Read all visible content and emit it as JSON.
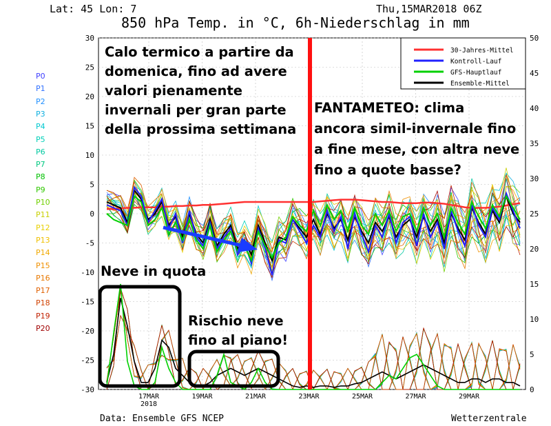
{
  "header": {
    "location": "Lat: 45 Lon: 7",
    "datetime": "Thu,15MAR2018 06Z",
    "title": "850 hPa Temp. in °C, 6h-Niederschlag in mm"
  },
  "footer": {
    "source": "Data: Ensemble GFS NCEP",
    "brand": "Wetterzentrale"
  },
  "annotations": {
    "left_text": [
      "Calo termico a partire da",
      "domenica, fino ad avere",
      "valori pienamente",
      "invernali per gran parte",
      "della prossima settimana"
    ],
    "right_text": [
      "FANTAMETEO: clima",
      "ancora simil-invernale fino",
      "a fine mese, con altra neve",
      "fino a quote basse?"
    ],
    "snow_high": "Neve in quota",
    "snow_plain": [
      "Rischio neve",
      "fino al piano!"
    ]
  },
  "members": [
    {
      "label": "P0",
      "color": "#4040ff"
    },
    {
      "label": "P1",
      "color": "#3070ff"
    },
    {
      "label": "P2",
      "color": "#2090ff"
    },
    {
      "label": "P3",
      "color": "#10b0e0"
    },
    {
      "label": "P4",
      "color": "#00c8d0"
    },
    {
      "label": "P5",
      "color": "#00d0b8"
    },
    {
      "label": "P6",
      "color": "#00c8a0"
    },
    {
      "label": "P7",
      "color": "#00c880"
    },
    {
      "label": "P8",
      "color": "#00c000"
    },
    {
      "label": "P9",
      "color": "#30c800"
    },
    {
      "label": "P10",
      "color": "#70d000"
    },
    {
      "label": "P11",
      "color": "#c8d000"
    },
    {
      "label": "P12",
      "color": "#e8d000"
    },
    {
      "label": "P13",
      "color": "#f0c000"
    },
    {
      "label": "P14",
      "color": "#f0a800"
    },
    {
      "label": "P15",
      "color": "#f09000"
    },
    {
      "label": "P16",
      "color": "#e87800"
    },
    {
      "label": "P17",
      "color": "#e06000"
    },
    {
      "label": "P18",
      "color": "#d04000"
    },
    {
      "label": "P19",
      "color": "#c02000"
    },
    {
      "label": "P20",
      "color": "#a00000"
    }
  ],
  "chart_data": {
    "type": "line",
    "x_tick_labels": [
      "17MAR",
      "19MAR",
      "21MAR",
      "23MAR",
      "25MAR",
      "27MAR",
      "29MAR"
    ],
    "x_year_label": "2018",
    "y_left_ticks": [
      30,
      25,
      20,
      15,
      10,
      5,
      0,
      -5,
      -10,
      -15,
      -20,
      -25,
      -30
    ],
    "y_right_ticks": [
      50,
      45,
      40,
      35,
      30,
      25,
      20,
      15,
      10,
      5,
      0
    ],
    "ylim_left": [
      -30,
      30
    ],
    "ylim_right": [
      0,
      50
    ],
    "legend": [
      {
        "name": "30-Jahres-Mittel",
        "color": "#ff3030"
      },
      {
        "name": "Kontroll-Lauf",
        "color": "#2020ff"
      },
      {
        "name": "GFS-Hauptlauf",
        "color": "#00d000"
      },
      {
        "name": "Ensemble-Mittel",
        "color": "#000000"
      }
    ],
    "series": [
      {
        "name": "30-Jahres-Mittel",
        "color": "#ff3030",
        "values": [
          0.8,
          0.8,
          0.9,
          1.0,
          1.0,
          1.1,
          1.1,
          1.1,
          1.2,
          1.2,
          1.3,
          1.3,
          1.4,
          1.4,
          1.5,
          1.5,
          1.6,
          1.7,
          1.8,
          1.9,
          2.0,
          2.0,
          2.0,
          2.0,
          2.0,
          2.0,
          2.0,
          2.0,
          2.0,
          2.0,
          2.0,
          2.1,
          2.2,
          2.3,
          2.4,
          2.4,
          2.4,
          2.3,
          2.2,
          2.1,
          2.0,
          2.0,
          1.9,
          1.8,
          1.8,
          1.8,
          1.9,
          1.9,
          1.8,
          1.7,
          1.5,
          1.3,
          1.1,
          1.0,
          1.0,
          1.0,
          1.1,
          1.2,
          1.4,
          1.6,
          1.8
        ]
      },
      {
        "name": "Ensemble-Mittel",
        "color": "#000000",
        "values": [
          2.0,
          1.5,
          1.0,
          -1.5,
          4.0,
          2.5,
          -1.0,
          0.0,
          2.0,
          -2.0,
          -0.5,
          -4.0,
          0.0,
          -3.5,
          -5.0,
          -1.0,
          -5.5,
          -3.5,
          -2.0,
          -6.0,
          -4.5,
          -7.0,
          -2.0,
          -5.0,
          -8.0,
          -4.0,
          -4.5,
          -1.0,
          -2.5,
          -4.0,
          -1.0,
          -3.5,
          0.0,
          -2.5,
          -1.0,
          -4.5,
          -0.5,
          -3.0,
          -5.0,
          -1.5,
          -3.0,
          -0.5,
          -4.0,
          -2.0,
          -1.0,
          -4.0,
          -0.5,
          -3.0,
          -1.0,
          -5.0,
          0.0,
          -2.5,
          -4.5,
          1.0,
          -1.5,
          -3.5,
          0.5,
          -1.5,
          3.0,
          0.0,
          -1.5
        ]
      },
      {
        "name": "Kontroll-Lauf",
        "color": "#2020ff",
        "values": [
          1.5,
          1.0,
          0.5,
          -2.0,
          4.5,
          3.0,
          -1.5,
          0.5,
          2.5,
          -2.5,
          0.0,
          -5.0,
          0.5,
          -4.0,
          -5.5,
          -1.5,
          -6.0,
          -4.0,
          -2.5,
          -7.0,
          -5.0,
          -8.5,
          -2.5,
          -6.0,
          -10.5,
          -4.5,
          -5.0,
          -1.0,
          -3.0,
          -5.0,
          -2.0,
          -4.0,
          0.5,
          -3.0,
          -0.5,
          -6.0,
          0.0,
          -3.5,
          -6.5,
          -2.0,
          -4.0,
          0.0,
          -5.0,
          -1.5,
          -0.5,
          -5.5,
          0.0,
          -4.0,
          -1.5,
          -6.0,
          0.5,
          -3.0,
          -5.5,
          1.5,
          -2.0,
          -4.0,
          1.0,
          -1.0,
          3.5,
          0.5,
          -2.5
        ]
      },
      {
        "name": "GFS-Hauptlauf",
        "color": "#00d000",
        "values": [
          0.0,
          -1.0,
          -1.5,
          -2.0,
          3.0,
          2.0,
          -2.0,
          -1.0,
          1.0,
          -3.5,
          -1.5,
          -4.5,
          -1.0,
          -4.5,
          -6.0,
          -2.0,
          -6.5,
          -4.5,
          -3.0,
          -6.5,
          -5.5,
          -8.0,
          -3.0,
          -5.5,
          -7.5,
          -5.0,
          -4.0,
          -0.5,
          -2.0,
          -3.0,
          0.5,
          -2.0,
          1.5,
          -1.0,
          0.5,
          -3.0,
          1.0,
          -2.0,
          -3.5,
          0.0,
          -2.0,
          0.5,
          -3.0,
          -0.5,
          0.0,
          -3.0,
          1.0,
          -2.0,
          0.0,
          -4.0,
          1.0,
          -1.5,
          -3.5,
          2.0,
          -0.5,
          -2.5,
          1.5,
          -0.5,
          3.0,
          1.0,
          -1.0
        ]
      },
      {
        "name": "Ensemble-Mittel Niederschlag",
        "color": "#000000",
        "axis": "right",
        "values": [
          1.0,
          5.0,
          13.0,
          9.0,
          4.0,
          1.0,
          1.0,
          3.0,
          7.0,
          6.0,
          3.0,
          2.0,
          1.0,
          0.5,
          0.5,
          1.0,
          2.0,
          2.5,
          3.0,
          2.5,
          2.0,
          2.5,
          3.0,
          2.5,
          2.0,
          1.5,
          1.0,
          0.5,
          0.3,
          0.5,
          0.3,
          0.5,
          0.5,
          0.3,
          0.5,
          0.5,
          0.8,
          1.0,
          1.5,
          2.0,
          2.5,
          2.0,
          1.5,
          2.0,
          2.5,
          3.0,
          3.5,
          3.0,
          2.5,
          2.0,
          1.5,
          1.0,
          1.0,
          1.5,
          1.5,
          1.0,
          1.5,
          1.5,
          1.0,
          1.0,
          0.5
        ]
      },
      {
        "name": "GFS-Hauptlauf Niederschlag",
        "color": "#00d000",
        "axis": "right",
        "values": [
          0.5,
          8.0,
          15.0,
          4.0,
          0.5,
          0.0,
          0.0,
          1.0,
          6.0,
          3.0,
          1.0,
          0.0,
          0.0,
          0.0,
          0.0,
          0.0,
          2.0,
          5.0,
          1.0,
          0.5,
          0.0,
          1.0,
          3.0,
          1.0,
          0.0,
          0.0,
          0.0,
          0.0,
          0.0,
          0.0,
          0.0,
          0.0,
          0.0,
          0.0,
          0.0,
          0.0,
          0.0,
          0.0,
          0.0,
          0.0,
          1.0,
          2.0,
          1.5,
          3.0,
          4.5,
          5.0,
          3.5,
          2.0,
          0.5,
          0.0,
          0.0,
          0.0,
          0.0,
          0.0,
          0.0,
          0.0,
          0.0,
          0.0,
          0.0,
          0.0,
          0.0
        ]
      }
    ]
  }
}
